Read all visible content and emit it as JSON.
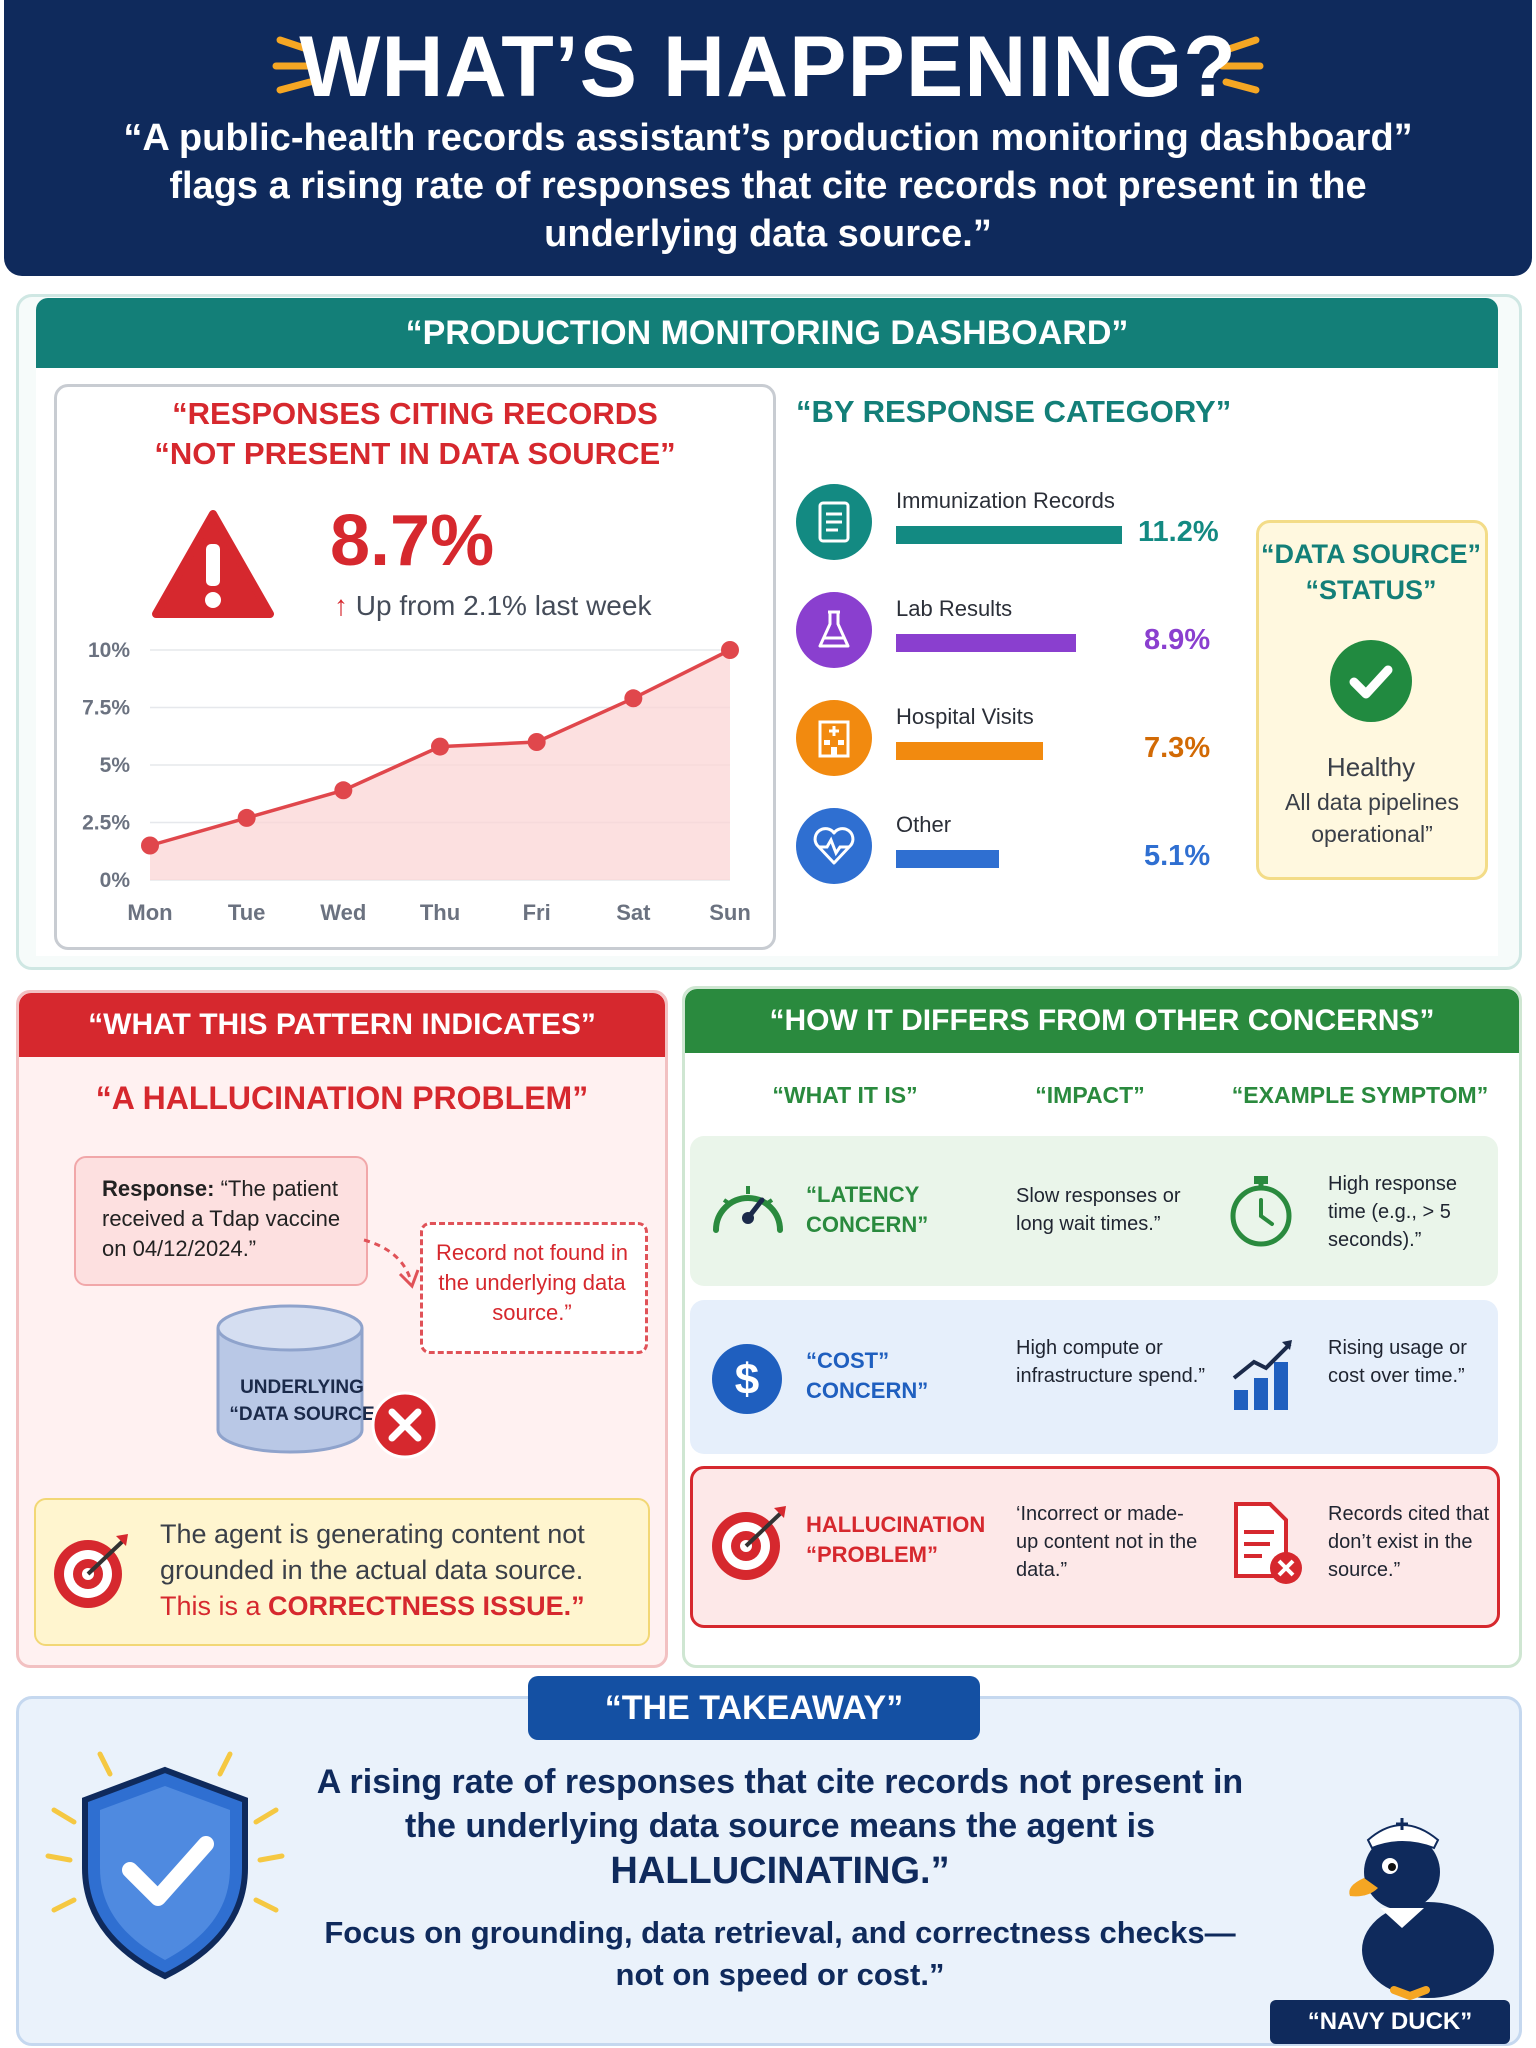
{
  "header": {
    "title": "WHAT’S HAPPENING?",
    "subtitle_line1": "“A public-health records assistant’s production monitoring dashboard”",
    "subtitle_line2": "flags a rising rate of responses that cite records not present in the",
    "subtitle_line3": "underlying data source.”"
  },
  "dashboard": {
    "heading": "“PRODUCTION MONITORING DASHBOARD”",
    "chart_title_line1": "“RESPONSES CITING RECORDS",
    "chart_title_line2": "“NOT PRESENT IN DATA SOURCE”",
    "big_value": "8.7%",
    "change_text": "Up from 2.1% last week",
    "categories_title": "“BY RESPONSE CATEGORY”",
    "categories": [
      {
        "label": "Immunization Records",
        "value": "11.2%",
        "pct": 11.2,
        "color": "#138a82",
        "icon": "document-icon"
      },
      {
        "label": "Lab Results",
        "value": "8.9%",
        "pct": 8.9,
        "color": "#8a3fcf",
        "icon": "flask-icon"
      },
      {
        "label": "Hospital Visits",
        "value": "7.3%",
        "pct": 7.3,
        "color": "#f28a0f",
        "icon": "hospital-icon"
      },
      {
        "label": "Other",
        "value": "5.1%",
        "pct": 5.1,
        "color": "#2f6fd1",
        "icon": "heart-pulse-icon"
      }
    ],
    "data_source": {
      "title_line1": "“DATA SOURCE”",
      "title_line2": "“STATUS”",
      "status": "Healthy",
      "detail": "All data pipelines operational”"
    }
  },
  "chart_data": {
    "type": "line",
    "x": [
      "Mon",
      "Tue",
      "Wed",
      "Thu",
      "Fri",
      "Sat",
      "Sun"
    ],
    "values": [
      1.5,
      2.7,
      3.9,
      5.8,
      6.0,
      7.9,
      10.0
    ],
    "yticks": [
      "0%",
      "2.5%",
      "5%",
      "7.5%",
      "10%"
    ],
    "ylim": [
      0,
      10
    ],
    "grid": true,
    "colors": {
      "line": "#e0474c",
      "fill": "#fbd5d6"
    }
  },
  "pattern": {
    "heading": "“WHAT THIS PATTERN INDICATES”",
    "subheading": "“A HALLUCINATION PROBLEM”",
    "response_label": "Response:",
    "response_text": "“The patient received a Tdap vaccine on 04/12/2024.”",
    "not_found": "Record not found in the underlying data source.”",
    "db_line1": "UNDERLYING",
    "db_line2": "“DATA SOURCE",
    "issue_text": "The agent is generating content not grounded in the actual data source.",
    "issue_prefix": "This is a ",
    "issue_strong": "CORRECTNESS ISSUE.”"
  },
  "comparison": {
    "heading": "“HOW IT DIFFERS FROM OTHER CONCERNS”",
    "col1": "“WHAT IT IS”",
    "col2": "“IMPACT”",
    "col3": "“EXAMPLE SYMPTOM”",
    "rows": [
      {
        "name1": "“LATENCY",
        "name2": "CONCERN”",
        "impact": "Slow responses or long wait times.”",
        "symptom": "High response time (e.g., > 5 seconds).”",
        "icon": "gauge-icon",
        "symptom_icon": "stopwatch-icon",
        "color": "#2a8a3e"
      },
      {
        "name1": "“COST”",
        "name2": "CONCERN”",
        "impact": "High compute or infrastructure spend.”",
        "symptom": "Rising usage or cost over time.”",
        "icon": "dollar-icon",
        "symptom_icon": "bar-trend-icon",
        "color": "#1f5fbf"
      },
      {
        "name1": "HALLUCINATION",
        "name2": "“PROBLEM”",
        "impact": "‘Incorrect or made-up content not in the data.”",
        "symptom": "Records cited that don’t exist in the source.”",
        "icon": "target-icon",
        "symptom_icon": "document-error-icon",
        "color": "#d6282e"
      }
    ]
  },
  "takeaway": {
    "heading": "“THE TAKEAWAY”",
    "main": "A rising rate of responses that cite records not present in the underlying data source means the agent is",
    "emphasis": "HALLUCINATING.”",
    "sub": "Focus on grounding, data retrieval, and correctness checks— not on speed or cost.”",
    "mascot": "“NAVY DUCK”"
  }
}
